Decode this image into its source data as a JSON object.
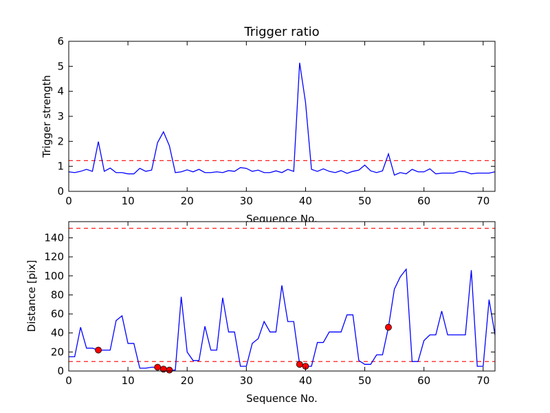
{
  "chart_data": [
    {
      "type": "line",
      "title": "Trigger ratio",
      "xlabel": "Sequence No.",
      "ylabel": "Trigger strength",
      "xlim": [
        0,
        72
      ],
      "ylim": [
        0,
        6
      ],
      "xticks": [
        "0",
        "10",
        "20",
        "30",
        "40",
        "50",
        "60",
        "70"
      ],
      "yticks": [
        "0",
        "1",
        "2",
        "3",
        "4",
        "5",
        "6"
      ],
      "grid": false,
      "line_color": "#0000ff",
      "threshold": {
        "value": 1.23,
        "color": "#ff0000",
        "style": "dashed"
      },
      "x": [
        0,
        1,
        2,
        3,
        4,
        5,
        6,
        7,
        8,
        9,
        10,
        11,
        12,
        13,
        14,
        15,
        16,
        17,
        18,
        19,
        20,
        21,
        22,
        23,
        24,
        25,
        26,
        27,
        28,
        29,
        30,
        31,
        32,
        33,
        34,
        35,
        36,
        37,
        38,
        39,
        40,
        41,
        42,
        43,
        44,
        45,
        46,
        47,
        48,
        49,
        50,
        51,
        52,
        53,
        54,
        55,
        56,
        57,
        58,
        59,
        60,
        61,
        62,
        63,
        64,
        65,
        66,
        67,
        68,
        69,
        70,
        71,
        72
      ],
      "values": [
        0.78,
        0.75,
        0.8,
        0.88,
        0.8,
        1.99,
        0.8,
        0.93,
        0.75,
        0.75,
        0.7,
        0.7,
        0.92,
        0.8,
        0.85,
        1.95,
        2.38,
        1.82,
        0.75,
        0.78,
        0.86,
        0.78,
        0.88,
        0.75,
        0.75,
        0.78,
        0.75,
        0.83,
        0.8,
        0.95,
        0.92,
        0.8,
        0.85,
        0.75,
        0.75,
        0.82,
        0.75,
        0.88,
        0.8,
        5.14,
        3.55,
        0.88,
        0.8,
        0.9,
        0.8,
        0.75,
        0.83,
        0.72,
        0.8,
        0.85,
        1.05,
        0.82,
        0.75,
        0.82,
        1.5,
        0.65,
        0.75,
        0.7,
        0.88,
        0.78,
        0.78,
        0.9,
        0.7,
        0.73,
        0.73,
        0.73,
        0.8,
        0.78,
        0.7,
        0.73,
        0.73,
        0.73,
        0.78
      ]
    },
    {
      "type": "line",
      "title": "",
      "xlabel": "Sequence No.",
      "ylabel": "Distance [pix]",
      "xlim": [
        0,
        72
      ],
      "ylim": [
        0,
        157
      ],
      "xticks": [
        "0",
        "10",
        "20",
        "30",
        "40",
        "50",
        "60",
        "70"
      ],
      "yticks": [
        "0",
        "20",
        "40",
        "60",
        "80",
        "100",
        "120",
        "140"
      ],
      "grid": false,
      "line_color": "#0000ff",
      "thresholds": [
        {
          "value": 150,
          "color": "#ff0000",
          "style": "dashed"
        },
        {
          "value": 10,
          "color": "#ff0000",
          "style": "dashed"
        }
      ],
      "x": [
        0,
        1,
        2,
        3,
        4,
        5,
        6,
        7,
        8,
        9,
        10,
        11,
        12,
        13,
        14,
        15,
        16,
        17,
        18,
        19,
        20,
        21,
        22,
        23,
        24,
        25,
        26,
        27,
        28,
        29,
        30,
        31,
        32,
        33,
        34,
        35,
        36,
        37,
        38,
        39,
        40,
        41,
        42,
        43,
        44,
        45,
        46,
        47,
        48,
        49,
        50,
        51,
        52,
        53,
        54,
        55,
        56,
        57,
        58,
        59,
        60,
        61,
        62,
        63,
        64,
        65,
        66,
        67,
        68,
        69,
        70,
        71,
        72
      ],
      "values": [
        15,
        15,
        46,
        24,
        24,
        22,
        22,
        22,
        53,
        58,
        29,
        29,
        3,
        3,
        4,
        4,
        2,
        1,
        1,
        78,
        20,
        11,
        11,
        47,
        22,
        22,
        77,
        41,
        41,
        5,
        5,
        29,
        34,
        52,
        41,
        41,
        90,
        52,
        52,
        7,
        5,
        5,
        30,
        30,
        41,
        41,
        41,
        59,
        59,
        11,
        7,
        7,
        17,
        17,
        46,
        86,
        99,
        107,
        10,
        10,
        32,
        38,
        38,
        63,
        38,
        38,
        38,
        38,
        106,
        5,
        5,
        75,
        38
      ],
      "markers": {
        "color": "#ff0000",
        "points": [
          {
            "x": 5,
            "y": 22
          },
          {
            "x": 15,
            "y": 4
          },
          {
            "x": 16,
            "y": 2
          },
          {
            "x": 17,
            "y": 1
          },
          {
            "x": 39,
            "y": 7
          },
          {
            "x": 40,
            "y": 5
          },
          {
            "x": 54,
            "y": 46
          }
        ]
      }
    }
  ]
}
